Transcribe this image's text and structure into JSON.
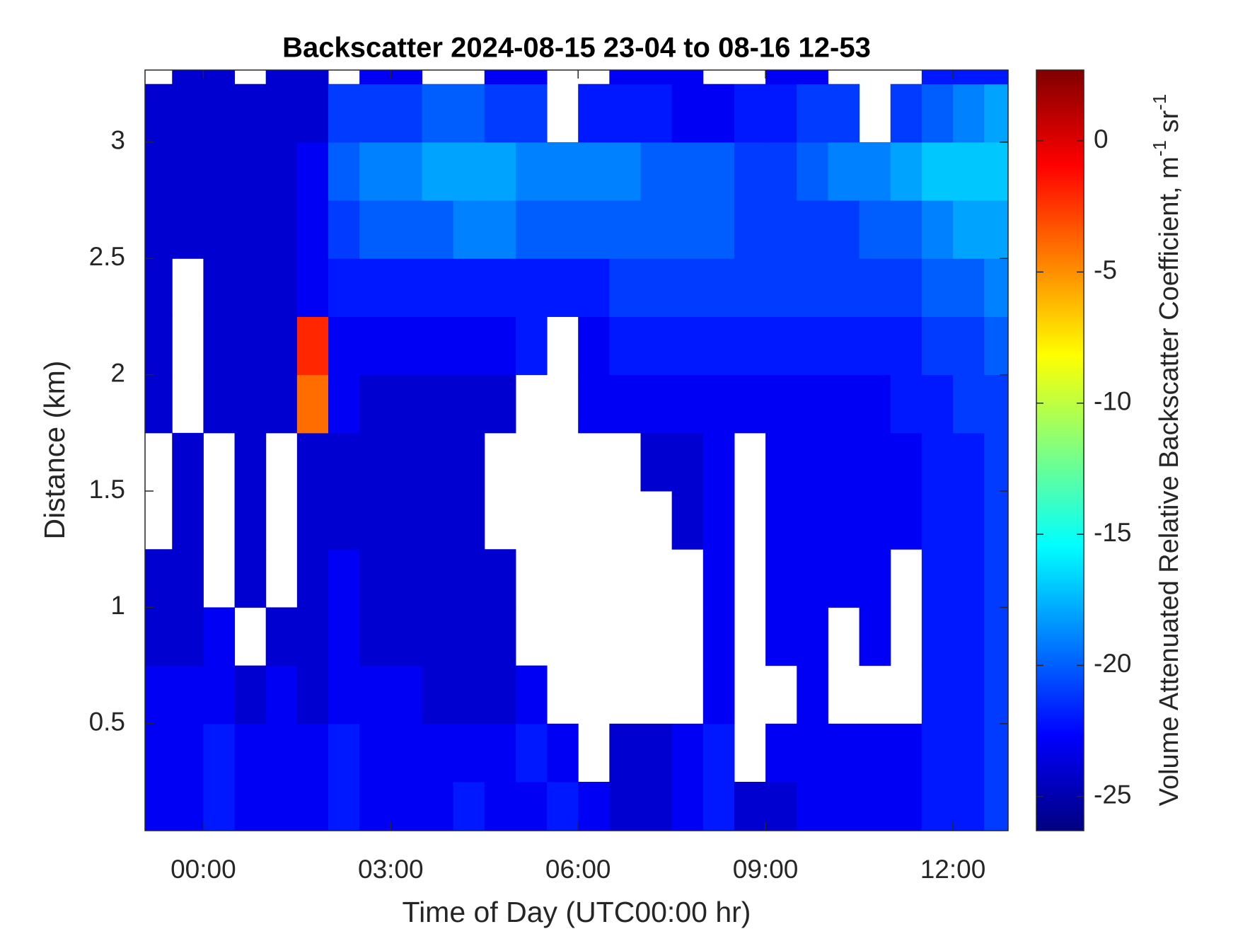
{
  "chart_data": {
    "type": "heatmap",
    "title": "Backscatter 2024-08-15 23-04 to 08-16 12-53",
    "x_label": "Time of Day (UTC00:00 hr)",
    "y_label": "Distance (km)",
    "colorbar_label": [
      "Volume Attenuated Relative Backscatter Coefficient, m",
      "-1",
      " sr",
      "-1"
    ],
    "colormap": "jet",
    "clim": [
      -26.3,
      2.7
    ],
    "cticks": [
      0,
      -5,
      -10,
      -15,
      -20,
      -25
    ],
    "xlim": [
      -0.9333,
      12.8833
    ],
    "xticks": [
      {
        "value": 0,
        "label": "00:00"
      },
      {
        "value": 3,
        "label": "03:00"
      },
      {
        "value": 6,
        "label": "06:00"
      },
      {
        "value": 9,
        "label": "09:00"
      },
      {
        "value": 12,
        "label": "12:00"
      }
    ],
    "ylim": [
      0.04,
      3.31
    ],
    "yticks": [
      0.5,
      1,
      1.5,
      2,
      2.5,
      3
    ],
    "x_edges": [
      -0.9333,
      -0.5,
      0,
      0.5,
      1,
      1.5,
      2,
      2.5,
      3,
      3.5,
      4,
      4.5,
      5,
      5.5,
      6,
      6.5,
      7,
      7.5,
      8,
      8.5,
      9,
      9.5,
      10,
      10.5,
      11,
      11.5,
      12,
      12.5,
      12.8833
    ],
    "y_edges": [
      0.04,
      0.25,
      0.5,
      0.75,
      1,
      1.25,
      1.5,
      1.75,
      2,
      2.25,
      2.5,
      2.75,
      3,
      3.25,
      3.31
    ],
    "z": [
      [
        -23,
        -23,
        -22,
        -23,
        -23,
        -23,
        -22,
        -23,
        -23,
        -23,
        -22,
        -23,
        -23,
        -22,
        -23,
        -24,
        -24,
        -23,
        -22,
        -24,
        -24,
        -23,
        -23,
        -23,
        -23,
        -22,
        -22,
        -21
      ],
      [
        -23,
        -23,
        -22,
        -23,
        -23,
        -23,
        -22,
        -23,
        -23,
        -23,
        -23,
        -23,
        -22,
        -23,
        null,
        -24,
        -24,
        -23,
        -22,
        null,
        -23,
        -23,
        -23,
        -23,
        -23,
        -22,
        -22,
        -21
      ],
      [
        -23,
        -23,
        -23,
        -24,
        -23,
        -24,
        -23,
        -23,
        -23,
        -24,
        -24,
        -24,
        -23,
        null,
        null,
        null,
        null,
        null,
        -23,
        null,
        null,
        -23,
        null,
        null,
        null,
        -22,
        -22,
        -21
      ],
      [
        -24,
        -24,
        -23,
        null,
        -24,
        -24,
        -23,
        -24,
        -24,
        -24,
        -24,
        -24,
        null,
        null,
        null,
        null,
        null,
        null,
        -23,
        null,
        -23,
        -23,
        null,
        -23,
        null,
        -22,
        -22,
        -21
      ],
      [
        -24,
        -24,
        null,
        -24,
        null,
        -24,
        -23,
        -24,
        -24,
        -24,
        -24,
        -24,
        null,
        null,
        null,
        null,
        null,
        null,
        -23,
        null,
        -23,
        -23,
        -23,
        -23,
        null,
        -22,
        -22,
        -21
      ],
      [
        null,
        -24,
        null,
        -24,
        null,
        -24,
        -24,
        -24,
        -24,
        -24,
        -24,
        null,
        null,
        null,
        null,
        null,
        null,
        -24,
        -23,
        null,
        -23,
        -23,
        -23,
        -23,
        -23,
        -22,
        -22,
        -21
      ],
      [
        null,
        -24,
        null,
        -24,
        null,
        -24,
        -24,
        -24,
        -24,
        -24,
        -24,
        null,
        null,
        null,
        null,
        null,
        -24,
        -24,
        -23,
        null,
        -23,
        -23,
        -23,
        -23,
        -23,
        -22,
        -22,
        -21
      ],
      [
        -24,
        null,
        -24,
        -24,
        -24,
        -4,
        -23,
        -24,
        -24,
        -24,
        -24,
        -24,
        null,
        null,
        -23,
        -23,
        -23,
        -23,
        -23,
        -23,
        -23,
        -23,
        -23,
        -23,
        -22,
        -22,
        -21,
        -21
      ],
      [
        -24,
        null,
        -24,
        -24,
        -24,
        -2,
        -23,
        -23,
        -23,
        -23,
        -23,
        -23,
        -22,
        null,
        -23,
        -22,
        -22,
        -22,
        -22,
        -22,
        -22,
        -22,
        -22,
        -22,
        -22,
        -21,
        -21,
        -20
      ],
      [
        -24,
        null,
        -24,
        -24,
        -24,
        -23,
        -22,
        -22,
        -22,
        -22,
        -22,
        -22,
        -22,
        -22,
        -22,
        -21,
        -21,
        -21,
        -21,
        -21,
        -21,
        -21,
        -21,
        -21,
        -21,
        -20,
        -20,
        -19
      ],
      [
        -24,
        -24,
        -24,
        -24,
        -24,
        -23,
        -21,
        -20,
        -20,
        -20,
        -19,
        -19,
        -20,
        -20,
        -20,
        -20,
        -20,
        -20,
        -20,
        -21,
        -21,
        -21,
        -21,
        -20,
        -20,
        -19,
        -18,
        -18
      ],
      [
        -24,
        -24,
        -24,
        -24,
        -24,
        -23,
        -20,
        -19,
        -19,
        -18,
        -18,
        -18,
        -19,
        -19,
        -19,
        -19,
        -20,
        -20,
        -20,
        -21,
        -21,
        -20,
        -19,
        -19,
        -18,
        -17,
        -17,
        -17
      ],
      [
        -24,
        -24,
        -24,
        -24,
        -24,
        -24,
        -21,
        -21,
        -21,
        -20,
        -20,
        -21,
        -21,
        null,
        -22,
        -22,
        -22,
        -23,
        -23,
        -22,
        -22,
        -21,
        -21,
        null,
        -21,
        -20,
        -19,
        -18
      ],
      [
        null,
        -24,
        -24,
        null,
        -24,
        -24,
        null,
        -23,
        -23,
        null,
        null,
        -23,
        -23,
        null,
        null,
        -23,
        -23,
        -23,
        null,
        null,
        -23,
        -23,
        null,
        null,
        null,
        -22,
        -22,
        -22
      ]
    ]
  }
}
